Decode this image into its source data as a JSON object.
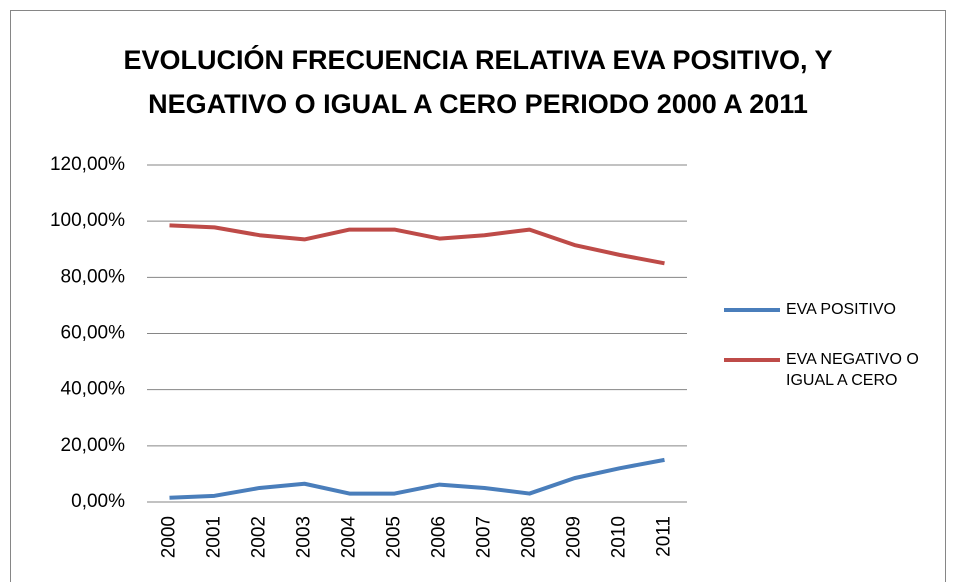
{
  "chart_data": {
    "type": "line",
    "title": [
      "EVOLUCIÓN FRECUENCIA RELATIVA EVA POSITIVO, Y",
      "NEGATIVO O IGUAL A CERO PERIODO 2000 A 2011"
    ],
    "categories": [
      "2000",
      "2001",
      "2002",
      "2003",
      "2004",
      "2005",
      "2006",
      "2007",
      "2008",
      "2009",
      "2010",
      "2011"
    ],
    "series": [
      {
        "name": "EVA POSITIVO",
        "color": "#4a7ebb",
        "values": [
          1.5,
          2.2,
          5,
          6.5,
          3,
          3,
          6.2,
          5,
          3,
          8.5,
          12,
          15
        ]
      },
      {
        "name": "EVA NEGATIVO O IGUAL A CERO",
        "color": "#be4b48",
        "values": [
          98.5,
          97.8,
          95,
          93.5,
          97,
          97,
          93.8,
          95,
          97,
          91.5,
          88,
          85
        ]
      }
    ],
    "ylim": [
      0,
      120
    ],
    "yticks": [
      {
        "value": 0,
        "label": "0,00%"
      },
      {
        "value": 20,
        "label": "20,00%"
      },
      {
        "value": 40,
        "label": "40,00%"
      },
      {
        "value": 60,
        "label": "60,00%"
      },
      {
        "value": 80,
        "label": "80,00%"
      },
      {
        "value": 100,
        "label": "100,00%"
      },
      {
        "value": 120,
        "label": "120,00%"
      }
    ],
    "grid": true,
    "legend": "right"
  }
}
